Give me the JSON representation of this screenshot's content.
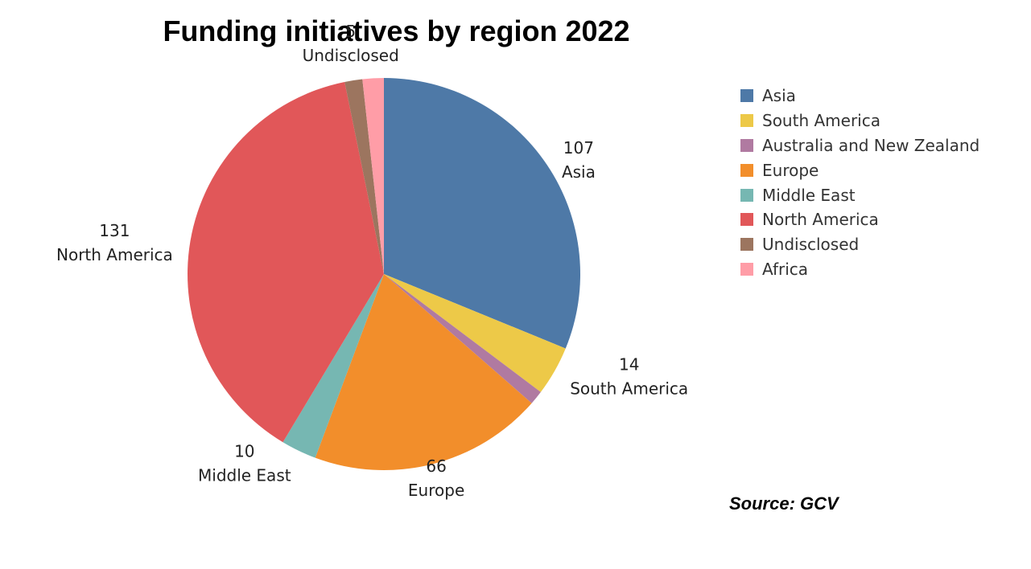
{
  "chart_data": {
    "type": "pie",
    "title": "Funding initiatives by region 2022",
    "slices": [
      {
        "label": "Asia",
        "value": 107,
        "color": "#4e79a7",
        "show_label": true
      },
      {
        "label": "South America",
        "value": 14,
        "color": "#edc948",
        "show_label": true
      },
      {
        "label": "Australia and New Zealand",
        "value": 4,
        "color": "#b07aa1",
        "show_label": false
      },
      {
        "label": "Europe",
        "value": 66,
        "color": "#f28e2b",
        "show_label": true
      },
      {
        "label": "Middle East",
        "value": 10,
        "color": "#76b7b2",
        "show_label": true
      },
      {
        "label": "North America",
        "value": 131,
        "color": "#e15759",
        "show_label": true
      },
      {
        "label": "Undisclosed",
        "value": 5,
        "color": "#9c755f",
        "show_label": true
      },
      {
        "label": "Africa",
        "value": 6,
        "color": "#ff9da7",
        "show_label": false
      }
    ],
    "legend_position": "right",
    "source": "Source: GCV"
  }
}
